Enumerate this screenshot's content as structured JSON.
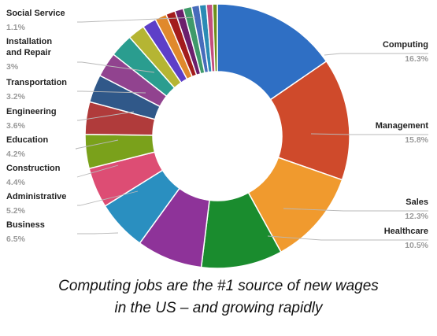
{
  "chart_data": {
    "type": "pie",
    "donut": true,
    "slices": [
      {
        "label": "Computing",
        "value": 16.3,
        "color": "#2f6fc4"
      },
      {
        "label": "Management",
        "value": 15.8,
        "color": "#cf4a2b"
      },
      {
        "label": "Sales",
        "value": 12.3,
        "color": "#f09a2e"
      },
      {
        "label": "Healthcare",
        "value": 10.5,
        "color": "#1a8c2e"
      },
      {
        "label": "",
        "value": 8.5,
        "color": "#8e3399"
      },
      {
        "label": "Business",
        "value": 6.5,
        "color": "#2a8fc0"
      },
      {
        "label": "Administrative",
        "value": 5.2,
        "color": "#dd4d74"
      },
      {
        "label": "Construction",
        "value": 4.4,
        "color": "#7aa11b"
      },
      {
        "label": "Education",
        "value": 4.2,
        "color": "#b03b3b"
      },
      {
        "label": "Engineering",
        "value": 3.6,
        "color": "#305889"
      },
      {
        "label": "Transportation",
        "value": 3.2,
        "color": "#91438f"
      },
      {
        "label": "Installation and Repair",
        "value": 3.0,
        "color": "#2a9d8f"
      },
      {
        "label": "",
        "value": 2.2,
        "color": "#b5b533"
      },
      {
        "label": "",
        "value": 1.8,
        "color": "#5d3fc8"
      },
      {
        "label": "",
        "value": 1.5,
        "color": "#e0892c"
      },
      {
        "label": "",
        "value": 1.2,
        "color": "#a31c1c"
      },
      {
        "label": "",
        "value": 1.1,
        "color": "#6c1f6c"
      },
      {
        "label": "Social Service",
        "value": 1.1,
        "color": "#3f9a6a"
      },
      {
        "label": "",
        "value": 1.0,
        "color": "#476cbb"
      },
      {
        "label": "",
        "value": 0.9,
        "color": "#2b8bb5"
      },
      {
        "label": "",
        "value": 0.8,
        "color": "#c44d7d"
      },
      {
        "label": "",
        "value": 0.6,
        "color": "#6d8f1a"
      }
    ],
    "labels": [
      {
        "name": "Computing",
        "value_text": "16.3%"
      },
      {
        "name": "Management",
        "value_text": "15.8%"
      },
      {
        "name": "Sales",
        "value_text": "12.3%"
      },
      {
        "name": "Healthcare",
        "value_text": "10.5%"
      },
      {
        "name": "Business",
        "value_text": "6.5%"
      },
      {
        "name": "Administrative",
        "value_text": "5.2%"
      },
      {
        "name": "Construction",
        "value_text": "4.4%"
      },
      {
        "name": "Education",
        "value_text": "4.2%"
      },
      {
        "name": "Engineering",
        "value_text": "3.6%"
      },
      {
        "name": "Transportation",
        "value_text": "3.2%"
      },
      {
        "name": "Installation\nand Repair",
        "value_text": "3%"
      },
      {
        "name": "Social Service",
        "value_text": "1.1%"
      }
    ]
  },
  "caption": {
    "line1": "Computing jobs are the #1 source of new wages",
    "line2": "in the US – and growing rapidly"
  }
}
